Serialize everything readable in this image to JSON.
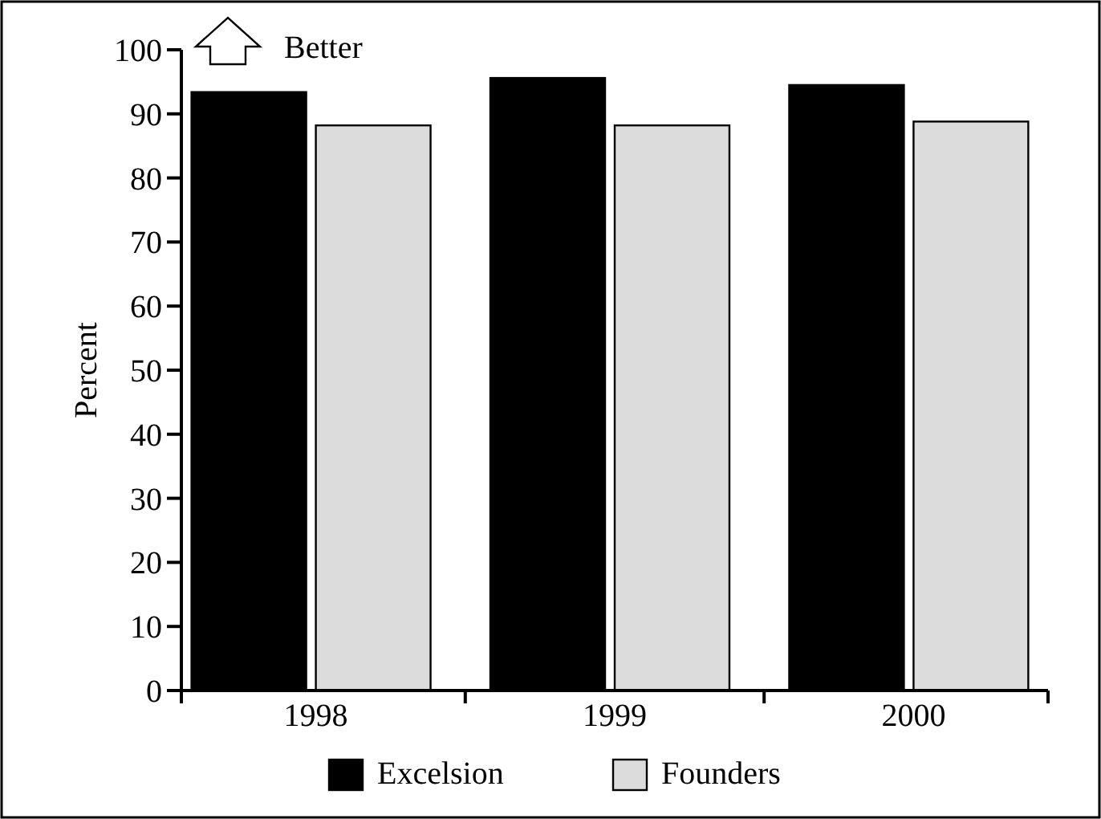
{
  "chart_data": {
    "type": "bar",
    "ylabel": "Percent",
    "categories": [
      "1998",
      "1999",
      "2000"
    ],
    "series": [
      {
        "name": "Excelsion",
        "color": "#000000",
        "values": [
          93.4,
          95.6,
          94.5
        ]
      },
      {
        "name": "Founders",
        "color": "#dcdcdc",
        "values": [
          88.2,
          88.2,
          88.8
        ]
      }
    ],
    "ylim": [
      0,
      100
    ],
    "yticks": [
      0,
      10,
      20,
      30,
      40,
      50,
      60,
      70,
      80,
      90,
      100
    ],
    "legend": "bottom",
    "annotations": [
      "Better"
    ]
  }
}
